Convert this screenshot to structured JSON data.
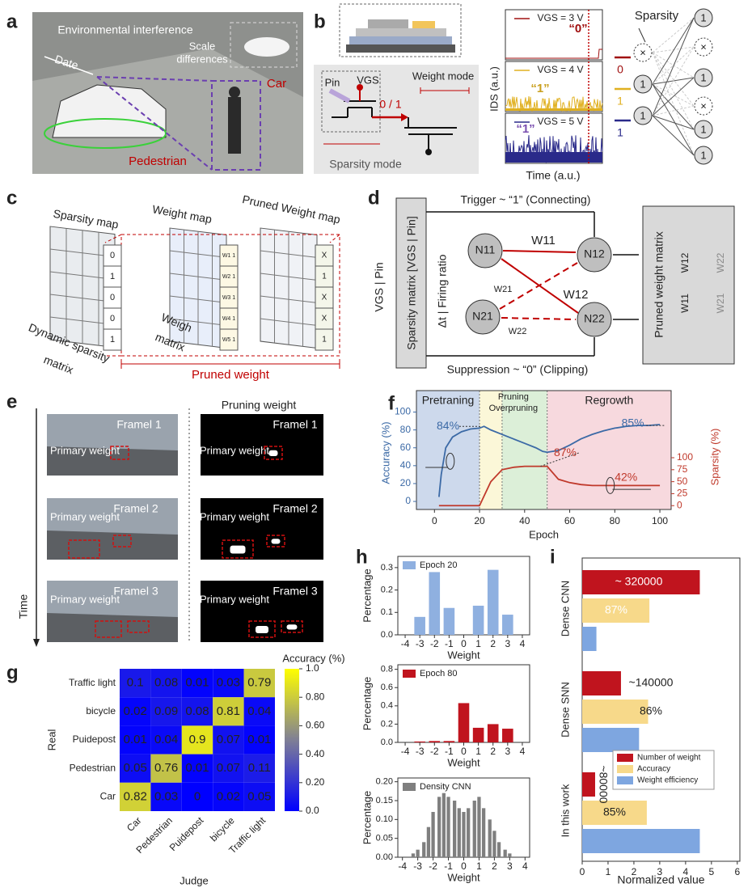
{
  "panel_labels": [
    "a",
    "b",
    "c",
    "d",
    "e",
    "f",
    "g",
    "h",
    "i"
  ],
  "panel_a": {
    "title": "Environmental interference",
    "date": "Date",
    "scale": [
      "Scale",
      "differences"
    ],
    "car": "Car",
    "pedestrian": "Pedestrian"
  },
  "panel_b": {
    "pin": "Pin",
    "vgs": "VGS",
    "output": "0 / 1",
    "weight_mode": "Weight mode",
    "sparsity_mode": "Sparsity mode",
    "traces": [
      {
        "label": "VGS = 3 V",
        "state": "“0”",
        "color": "#a01010"
      },
      {
        "label": "VGS = 4 V",
        "state": "“1”",
        "color": "#e0b020"
      },
      {
        "label": "VGS = 5 V",
        "state": "“1”",
        "color": "#2a2a8a"
      }
    ],
    "ylabel": "IDS (a.u.)",
    "xlabel": "Time (a.u.)",
    "sparsity": "Sparsity",
    "inputs": [
      "0",
      "1",
      "1"
    ],
    "layer1": [
      "×",
      "1",
      "1"
    ],
    "layer2": [
      "1",
      "×",
      "1",
      "×",
      "1",
      "1"
    ]
  },
  "panel_c": {
    "sparsity_map": "Sparsity map",
    "weight_map": "Weight map",
    "pruned_map": "Pruned Weight map",
    "dynamic": [
      "Dynamic sparsity",
      "matrix"
    ],
    "weigh": [
      "Weigh",
      "matrix"
    ],
    "pruned": "Pruned weight",
    "sparsity_column": [
      "0",
      "1",
      "0",
      "0",
      "1"
    ],
    "weight_column": [
      "W1 1",
      "W2 1",
      "W3 1",
      "W4 1",
      "W5 1"
    ],
    "pruned_column": [
      "X",
      "1",
      "X",
      "X",
      "1"
    ]
  },
  "panel_d": {
    "trigger": "Trigger ~ “1”  (Connecting)",
    "suppression": "Suppression ~ “0”  (Clipping)",
    "matrix": "Sparsity matrix [VGS | Pin]",
    "left": "VGS   |   Pin",
    "middle": "Δt   |   Firing ratio",
    "nodes": [
      "N11",
      "N21",
      "N12",
      "N22"
    ],
    "weights": [
      "W11",
      "W21",
      "W12",
      "W22"
    ],
    "pruned": "Pruned weight matrix",
    "entries": [
      "W12",
      "W22",
      "W11",
      "W21"
    ]
  },
  "panel_e": {
    "heading": "Pruning weight",
    "time": "Time",
    "frames": [
      {
        "name": "Framel 1",
        "label": "Primary weight"
      },
      {
        "name": "Framel 2",
        "label": "Primary weight"
      },
      {
        "name": "Framel 3",
        "label": "Primary weight"
      }
    ]
  },
  "chart_data": [
    {
      "type": "line",
      "xlabel": "Epoch",
      "ylabel": "Accuracy (%)",
      "y2label": "Sparsity (%)",
      "regions": [
        {
          "label": "Pretraning",
          "color": "#cdd9ec",
          "from": -8,
          "to": 20
        },
        {
          "label": "Pruning",
          "color": "#fbf7d8",
          "from": 20,
          "to": 30
        },
        {
          "label": "Overpruning",
          "color": "#dcefd8",
          "from": 30,
          "to": 50
        },
        {
          "label": "Regrowth",
          "color": "#f7d9de",
          "from": 50,
          "to": 105
        }
      ],
      "annotations": [
        "84%",
        "85%",
        "87%",
        "42%"
      ],
      "x": [
        2,
        3,
        5,
        8,
        12,
        16,
        20,
        22,
        25,
        30,
        35,
        40,
        45,
        48,
        50,
        55,
        60,
        65,
        70,
        75,
        80,
        85,
        90,
        95,
        100
      ],
      "series": [
        {
          "name": "Accuracy",
          "color": "#3c6aa6",
          "values": [
            5,
            30,
            60,
            72,
            78,
            81,
            82,
            84,
            80,
            75,
            70,
            65,
            60,
            56,
            55,
            57,
            63,
            70,
            75,
            79,
            82,
            84,
            85,
            85,
            86
          ]
        },
        {
          "name": "Sparsity",
          "color": "#c0392b",
          "axis": "y2",
          "values": [
            0,
            0,
            0,
            0,
            0,
            0,
            0,
            20,
            50,
            75,
            80,
            82,
            82,
            82,
            82,
            55,
            48,
            44,
            42,
            42,
            42,
            42,
            42,
            42,
            42
          ]
        }
      ],
      "xlim": [
        -8,
        105
      ],
      "xticks": [
        0,
        20,
        40,
        60,
        80,
        100
      ],
      "ylim": [
        -9,
        124
      ],
      "yticks": [
        0,
        20,
        40,
        60,
        80,
        100
      ],
      "y2lim": [
        -8,
        240
      ],
      "y2ticks": [
        0,
        25,
        50,
        75,
        100
      ]
    },
    {
      "type": "heatmap",
      "title": "Accuracy (%)",
      "ylabel": "Real",
      "xlabel": "Judge",
      "rows": [
        "Traffic light",
        "bicycle",
        "Puidepost",
        "Pedestrian",
        "Car"
      ],
      "columns": [
        "Car",
        "Pedestrian",
        "Puidepost",
        "bicycle",
        "Traffic light"
      ],
      "values": [
        [
          0.1,
          0.08,
          0.01,
          0.03,
          0.79
        ],
        [
          0.02,
          0.09,
          0.08,
          0.81,
          0.04
        ],
        [
          0.01,
          0.04,
          0.9,
          0.07,
          0.01
        ],
        [
          0.05,
          0.76,
          0.01,
          0.07,
          0.11
        ],
        [
          0.82,
          0.03,
          0,
          0.02,
          0.05
        ]
      ],
      "colormap": [
        "#0000ff",
        "#7f7f95",
        "#ffff00"
      ],
      "zlim": [
        0,
        1
      ],
      "zticks": [
        {
          "value": 0,
          "label": "0.0"
        },
        {
          "value": 0.2,
          "label": "0.20"
        },
        {
          "value": 0.4,
          "label": "0.40"
        },
        {
          "value": 0.6,
          "label": "0.60"
        },
        {
          "value": 0.8,
          "label": "0.80"
        },
        {
          "value": 1,
          "label": "1.0"
        }
      ]
    },
    {
      "type": "bar",
      "name": "Epoch 20",
      "color": "#8fb0e0",
      "xlabel": "Weight",
      "ylabel": "Percentage",
      "x": [
        -3,
        -2,
        -1,
        1,
        2,
        3
      ],
      "values": [
        0.08,
        0.28,
        0.12,
        0.13,
        0.29,
        0.09
      ],
      "xlim": [
        -4.5,
        4.5
      ],
      "xticks": [
        -4,
        -3,
        -2,
        -1,
        0,
        1,
        2,
        3,
        4
      ],
      "ylim": [
        0,
        0.35
      ],
      "yticks": [
        {
          "value": 0,
          "label": "0.0"
        },
        0.1,
        0.2,
        0.3
      ]
    },
    {
      "type": "bar",
      "name": "Epoch 80",
      "color": "#c0141e",
      "xlabel": "Weight",
      "ylabel": "Percentage",
      "x": [
        -3,
        -2,
        -1,
        0,
        1,
        2,
        3
      ],
      "values": [
        0.01,
        0.015,
        0.015,
        0.43,
        0.16,
        0.2,
        0.15
      ],
      "xlim": [
        -4.5,
        4.5
      ],
      "xticks": [
        -4,
        -3,
        -2,
        -1,
        0,
        1,
        2,
        3,
        4
      ],
      "ylim": [
        0,
        0.85
      ],
      "yticks": [
        {
          "value": 0,
          "label": "0.0"
        },
        0.2,
        0.4,
        0.6,
        0.8
      ]
    },
    {
      "type": "bar",
      "name": "Density CNN",
      "color": "#7f7f7f",
      "xlabel": "Weight",
      "ylabel": "Percentage",
      "x": [
        -3.3,
        -3.0,
        -2.6,
        -2.3,
        -2.0,
        -1.6,
        -1.3,
        -1.0,
        -0.6,
        -0.3,
        0,
        0.3,
        0.7,
        1.0,
        1.3,
        1.7,
        2.0,
        2.3,
        2.7,
        3.0
      ],
      "values": [
        0.01,
        0.02,
        0.04,
        0.08,
        0.12,
        0.16,
        0.17,
        0.16,
        0.15,
        0.13,
        0.12,
        0.13,
        0.15,
        0.16,
        0.13,
        0.1,
        0.07,
        0.04,
        0.02,
        0.01
      ],
      "xlim": [
        -4.3,
        4.3
      ],
      "xticks": [
        -4,
        -3,
        -2,
        -1,
        0,
        1,
        2,
        3,
        4
      ],
      "ylim": [
        0,
        0.21
      ],
      "yticks": [
        {
          "value": 0,
          "label": "0.00"
        },
        0.05,
        {
          "value": 0.1,
          "label": "0.10"
        },
        0.15,
        {
          "value": 0.2,
          "label": "0.20"
        }
      ]
    },
    {
      "type": "hbar",
      "xlabel": "Normalized value",
      "categories": [
        "Dense CNN",
        "Dense SNN",
        "In this work"
      ],
      "series": [
        {
          "name": "Number of weight",
          "color": "#c0141e",
          "values": [
            4.55,
            1.5,
            0.5
          ]
        },
        {
          "name": "Accuracy",
          "color": "#f7d98a",
          "values": [
            2.6,
            2.55,
            2.5
          ]
        },
        {
          "name": "Weight efficiency",
          "color": "#7ea6e0",
          "values": [
            0.55,
            2.2,
            4.55
          ]
        }
      ],
      "annotations": [
        "~ 320000",
        "87%",
        "~140000",
        "86%",
        "~80000",
        "85%"
      ],
      "xlim": [
        0,
        6.1
      ],
      "xticks": [
        0,
        1,
        2,
        3,
        4,
        5,
        6
      ]
    }
  ]
}
